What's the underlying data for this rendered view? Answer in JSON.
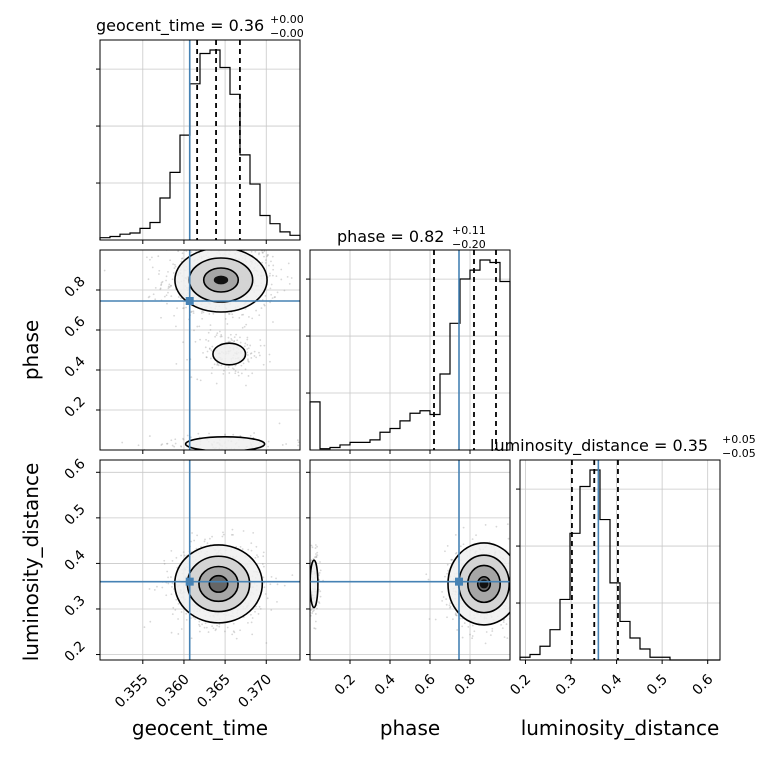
{
  "chart_data": {
    "type": "corner",
    "parameters": [
      {
        "key": "geocent_time",
        "label": "geocent_time",
        "title_text": "geocent_time = 0.36",
        "title_sup": "+0.00",
        "title_sub": "−0.00",
        "median": 0.36,
        "err_plus": 0.0,
        "err_minus": 0.0,
        "range": [
          0.3498,
          0.3741
        ],
        "truth": 0.3607,
        "quantiles": [
          0.3616,
          0.3639,
          0.3668
        ],
        "ticks": [
          0.355,
          0.36,
          0.365,
          0.37
        ],
        "tick_labels": [
          "0.355",
          "0.360",
          "0.365",
          "0.370"
        ]
      },
      {
        "key": "phase",
        "label": "phase",
        "title_text": "phase = 0.82",
        "title_sup": "+0.11",
        "title_sub": "−0.20",
        "median": 0.82,
        "err_plus": 0.11,
        "err_minus": 0.2,
        "range": [
          0.0,
          1.0
        ],
        "truth": 0.745,
        "quantiles": [
          0.62,
          0.82,
          0.93
        ],
        "ticks": [
          0.2,
          0.4,
          0.6,
          0.8
        ],
        "tick_labels": [
          "0.2",
          "0.4",
          "0.6",
          "0.8"
        ]
      },
      {
        "key": "luminosity_distance",
        "label": "luminosity_distance",
        "title_text": "luminosity_distance = 0.35",
        "title_sup": "+0.05",
        "title_sub": "−0.05",
        "median": 0.35,
        "err_plus": 0.05,
        "err_minus": 0.05,
        "range": [
          0.188,
          0.627
        ],
        "truth": 0.36,
        "quantiles": [
          0.302,
          0.351,
          0.403
        ],
        "ticks": [
          0.2,
          0.3,
          0.4,
          0.5,
          0.6
        ],
        "tick_labels": [
          "0.2",
          "0.3",
          "0.4",
          "0.5",
          "0.6"
        ]
      }
    ],
    "histograms": {
      "geocent_time": [
        2,
        3,
        5,
        6,
        10,
        15,
        36,
        58,
        90,
        134,
        160,
        163,
        148,
        125,
        73,
        48,
        21,
        14,
        7,
        4
      ],
      "phase": [
        38,
        1,
        2,
        4,
        6,
        6,
        8,
        14,
        17,
        23,
        29,
        31,
        28,
        60,
        100,
        135,
        142,
        150,
        148,
        133
      ],
      "luminosity_distance": [
        1,
        2,
        5,
        11,
        22,
        46,
        63,
        69,
        51,
        28,
        14,
        8,
        4,
        1,
        1,
        0,
        0,
        0,
        0,
        0
      ]
    },
    "grid": true,
    "truth_color": "#4682b4",
    "contour_color": "#000000",
    "line_color": "#000000"
  }
}
